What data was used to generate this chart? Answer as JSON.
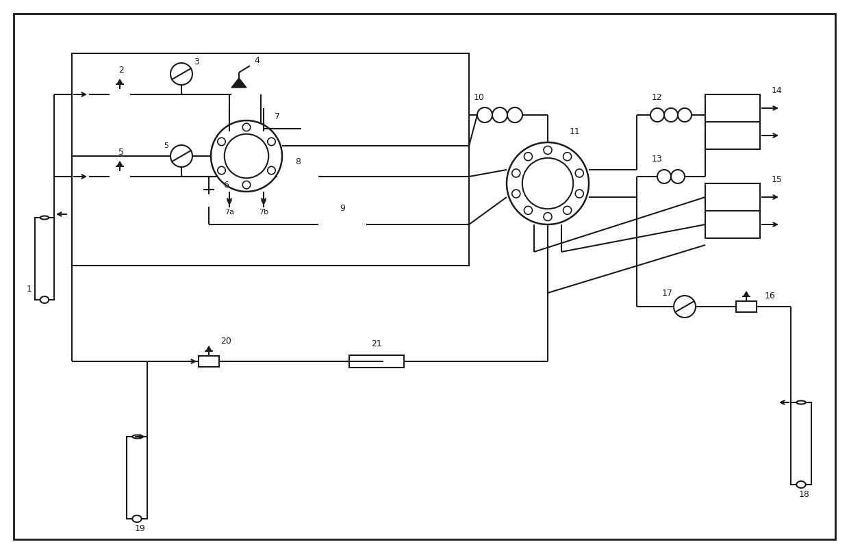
{
  "bg_color": "#ffffff",
  "line_color": "#1a1a1a",
  "line_width": 1.5,
  "figsize": [
    12.4,
    8.08
  ],
  "dpi": 100,
  "xlim": [
    0,
    124
  ],
  "ylim": [
    0,
    80.8
  ]
}
